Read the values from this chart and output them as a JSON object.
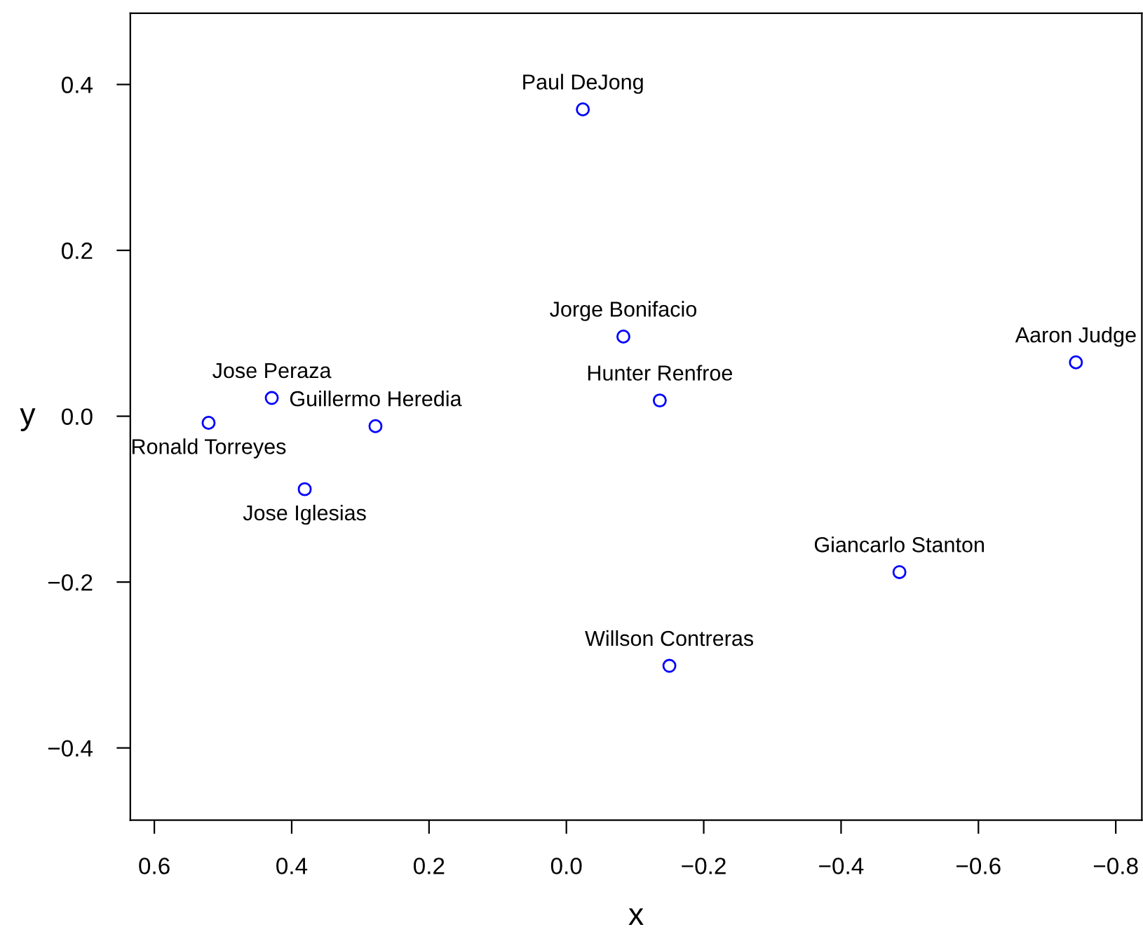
{
  "chart_data": {
    "type": "scatter",
    "xlabel": "x",
    "ylabel": "y",
    "x": [
      -0.024,
      -0.083,
      -0.742,
      0.429,
      -0.136,
      0.521,
      0.278,
      0.381,
      -0.485,
      -0.15
    ],
    "series": [
      {
        "color": "#0000ff",
        "values": [
          0.37,
          0.096,
          0.065,
          0.022,
          0.019,
          -0.008,
          -0.012,
          -0.088,
          -0.188,
          -0.301
        ]
      }
    ],
    "marker": "circle",
    "annotations": [
      {
        "text": "Paul DeJong",
        "x": -0.024,
        "y": 0.37
      },
      {
        "text": "Jorge Bonifacio",
        "x": -0.083,
        "y": 0.096
      },
      {
        "text": "Aaron Judge",
        "x": -0.742,
        "y": 0.065
      },
      {
        "text": "Jose Peraza",
        "x": 0.429,
        "y": 0.022
      },
      {
        "text": "Hunter Renfroe",
        "x": -0.136,
        "y": 0.019
      },
      {
        "text": "Ronald Torreyes",
        "x": 0.521,
        "y": -0.008
      },
      {
        "text": "Guillermo Heredia",
        "x": 0.278,
        "y": -0.012
      },
      {
        "text": "Jose Iglesias",
        "x": 0.381,
        "y": -0.088
      },
      {
        "text": "Giancarlo Stanton",
        "x": -0.485,
        "y": -0.188
      },
      {
        "text": "Willson Contreras",
        "x": -0.15,
        "y": -0.301
      }
    ],
    "xlim": [
      0.635,
      -0.838
    ],
    "xticks": [
      0.6,
      0.4,
      0.2,
      {
        "value": 0.0,
        "label": "0.0"
      },
      {
        "value": -0.2,
        "label": "−0.2"
      },
      {
        "value": -0.4,
        "label": "−0.4"
      },
      {
        "value": -0.6,
        "label": "−0.6"
      },
      {
        "value": -0.8,
        "label": "−0.8"
      }
    ],
    "ylim": [
      -0.487,
      0.486
    ],
    "yticks": [
      {
        "value": -0.4,
        "label": "−0.4"
      },
      {
        "value": -0.2,
        "label": "−0.2"
      },
      {
        "value": 0.0,
        "label": "0.0"
      },
      0.2,
      0.4
    ],
    "grid": false
  }
}
